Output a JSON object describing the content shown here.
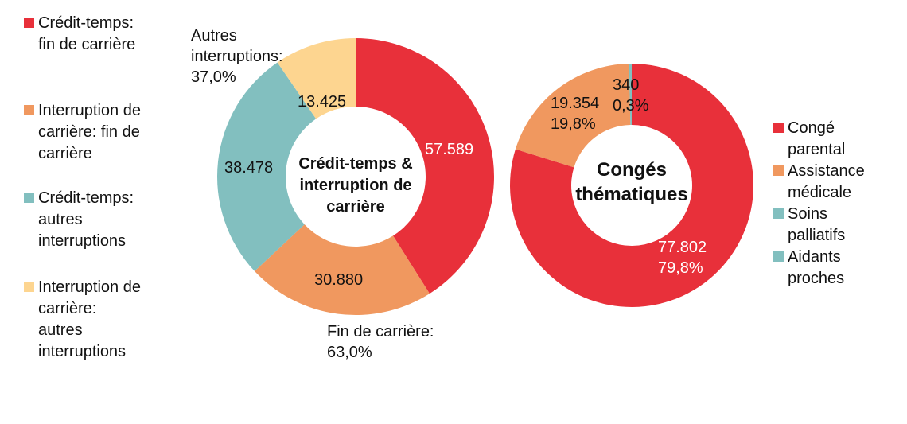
{
  "colors": {
    "red": "#E8303A",
    "orange": "#F0985F",
    "teal": "#82BFBF",
    "yellow": "#FDD590"
  },
  "legend_left": [
    {
      "label": "Crédit-temps:\nfin de carrière",
      "color": "#E8303A"
    },
    {
      "label": "Interruption de\ncarrière: fin de\ncarrière",
      "color": "#F0985F"
    },
    {
      "label": "Crédit-temps:\nautres\ninterruptions",
      "color": "#82BFBF"
    },
    {
      "label": "Interruption de\ncarrière:\nautres\ninterruptions",
      "color": "#FDD590"
    }
  ],
  "legend_right": [
    {
      "label": "Congé\nparental",
      "color": "#E8303A"
    },
    {
      "label": "Assistance\nmédicale",
      "color": "#F0985F"
    },
    {
      "label": "Soins\npalliatifs",
      "color": "#82BFBF"
    },
    {
      "label": "Aidants\nproches",
      "color": "#82BFBF"
    }
  ],
  "donut_left": {
    "title": "Crédit-temps &\ninterruption\nde carrière",
    "labels": {
      "s1": "57.589",
      "s2": "30.880",
      "s3": "38.478",
      "s4": "13.425"
    },
    "group_labels": {
      "autres": "Autres\ninterruptions:\n37,0%",
      "fin": "Fin de carrière:\n63,0%"
    }
  },
  "donut_right": {
    "title": "Congés\nthématiques",
    "labels": {
      "parental": "77.802\n79,8%",
      "medicale": "19.354\n19,8%",
      "aidants": "340\n0,3%"
    }
  },
  "chart_data": [
    {
      "type": "pie",
      "variant": "donut",
      "title": "Crédit-temps & interruption de carrière",
      "categories": [
        "Crédit-temps: fin de carrière",
        "Interruption de carrière: fin de carrière",
        "Crédit-temps: autres interruptions",
        "Interruption de carrière: autres interruptions"
      ],
      "values": [
        57589,
        30880,
        38478,
        13425
      ],
      "colors": [
        "#E8303A",
        "#F0985F",
        "#82BFBF",
        "#FDD590"
      ],
      "annotations": [
        {
          "text": "Fin de carrière: 63,0%"
        },
        {
          "text": "Autres interruptions: 37,0%"
        }
      ],
      "legend_position": "left"
    },
    {
      "type": "pie",
      "variant": "donut",
      "title": "Congés thématiques",
      "categories": [
        "Congé parental",
        "Assistance médicale",
        "Soins palliatifs",
        "Aidants proches"
      ],
      "values": [
        77802,
        19354,
        0,
        340
      ],
      "percentages": [
        79.8,
        19.8,
        0.0,
        0.3
      ],
      "colors": [
        "#E8303A",
        "#F0985F",
        "#82BFBF",
        "#82BFBF"
      ],
      "legend_position": "right"
    }
  ]
}
